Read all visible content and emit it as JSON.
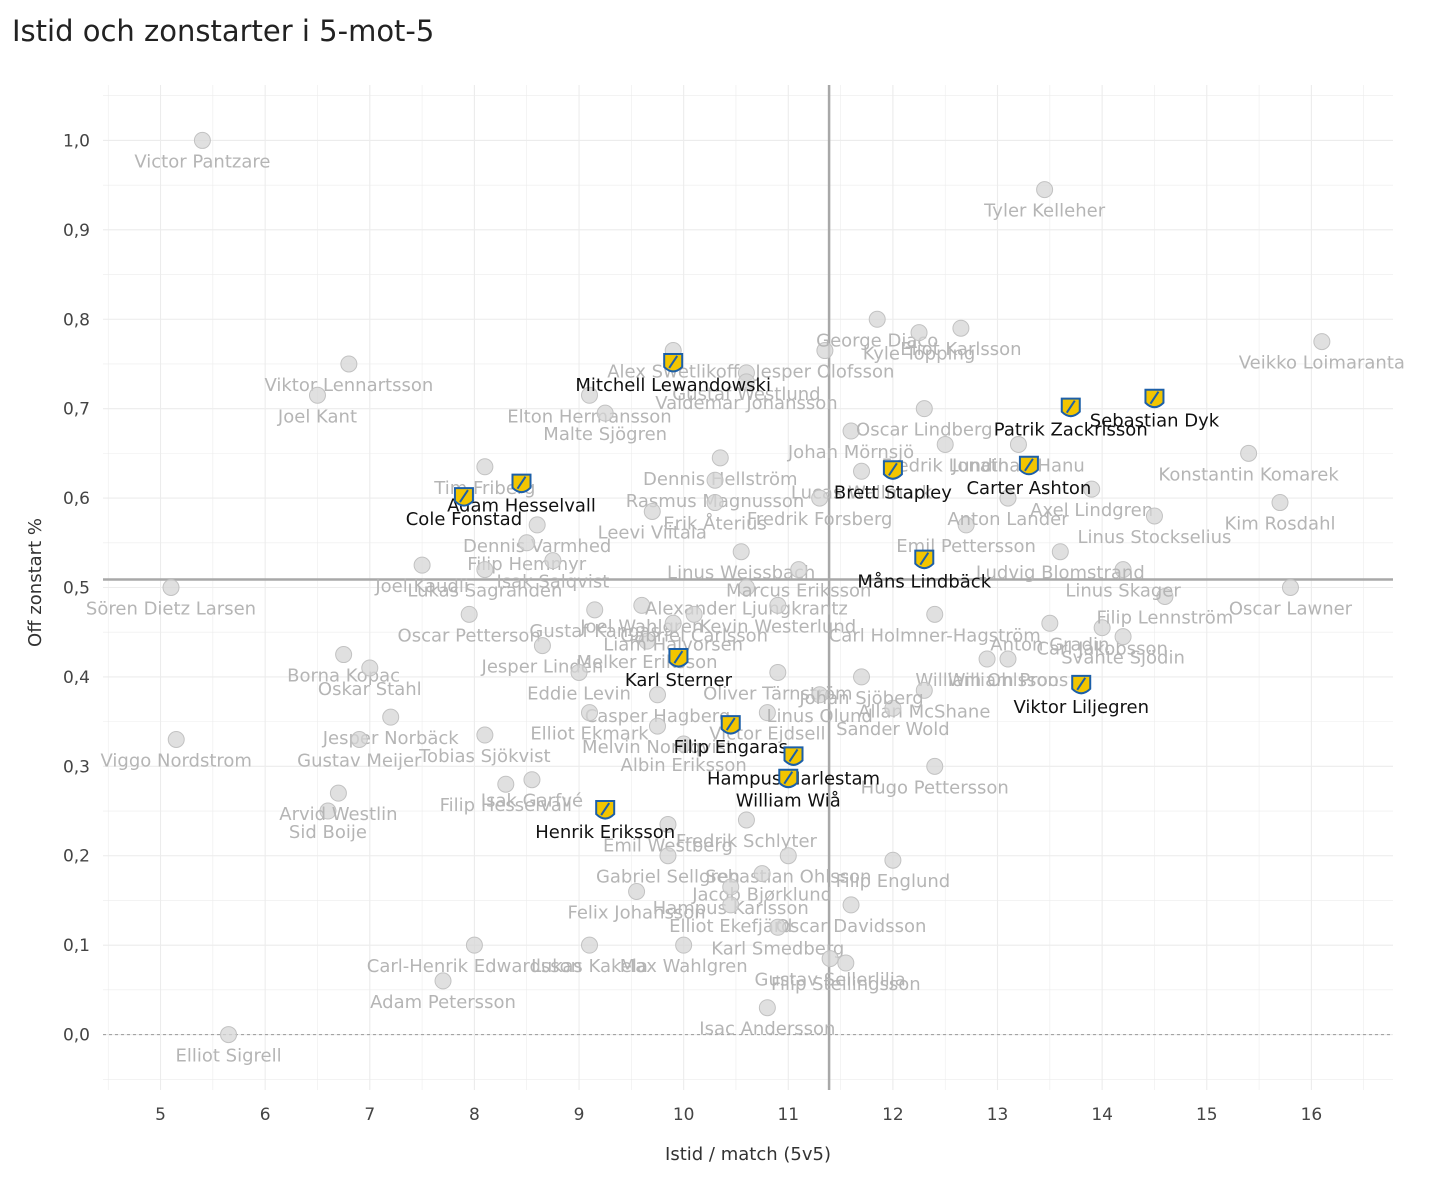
{
  "page": {
    "title": "Istid och zonstarter i 5-mot-5"
  },
  "chart_data": {
    "type": "scatter",
    "title": "Istid och zonstarter i 5-mot-5",
    "xlabel": "Istid / match (5v5)",
    "ylabel": "Off zonstart %",
    "xlim": [
      4.45,
      16.78
    ],
    "ylim": [
      -0.062,
      1.062
    ],
    "xticks": [
      5,
      6,
      7,
      8,
      9,
      10,
      11,
      12,
      13,
      14,
      15,
      16
    ],
    "xtick_labels": [
      "5",
      "6",
      "7",
      "8",
      "9",
      "10",
      "11",
      "12",
      "13",
      "14",
      "15",
      "16"
    ],
    "yticks": [
      0,
      0.1,
      0.2,
      0.3,
      0.4,
      0.5,
      0.6,
      0.7,
      0.8,
      0.9,
      1.0
    ],
    "ytick_labels": [
      "0,0",
      "0,1",
      "0,2",
      "0,3",
      "0,4",
      "0,5",
      "0,6",
      "0,7",
      "0,8",
      "0,9",
      "1,0"
    ],
    "reference_lines": {
      "x_mean": 11.39,
      "y_mean": 0.509,
      "zero_line": 0
    },
    "colors": {
      "highlight_fill": "#f2c500",
      "highlight_stroke": "#1c5fa8",
      "background_marker": "#d6d6d6",
      "background_label": "#b5b5b5",
      "reference_line": "#a8a8a8",
      "grid": "#ececec"
    },
    "highlighted": [
      {
        "name": "Mitchell Lewandowski",
        "x": 9.9,
        "y": 0.75
      },
      {
        "name": "Sebastian Dyk",
        "x": 14.5,
        "y": 0.71
      },
      {
        "name": "Patrik Zackrisson",
        "x": 13.7,
        "y": 0.7
      },
      {
        "name": "Adam Hesselvall",
        "x": 8.45,
        "y": 0.615
      },
      {
        "name": "Cole Fonstad",
        "x": 7.9,
        "y": 0.6
      },
      {
        "name": "Brett Stapley",
        "x": 12.0,
        "y": 0.63
      },
      {
        "name": "Carter Ashton",
        "x": 13.3,
        "y": 0.635
      },
      {
        "name": "Måns Lindbäck",
        "x": 12.3,
        "y": 0.53
      },
      {
        "name": "Karl Sterner",
        "x": 9.95,
        "y": 0.42
      },
      {
        "name": "Viktor Liljegren",
        "x": 13.8,
        "y": 0.39
      },
      {
        "name": "Filip Engaras",
        "x": 10.45,
        "y": 0.345
      },
      {
        "name": "Hampus Harlestam",
        "x": 11.05,
        "y": 0.31
      },
      {
        "name": "William Wiå",
        "x": 11.0,
        "y": 0.285
      },
      {
        "name": "Henrik Eriksson",
        "x": 9.25,
        "y": 0.25
      }
    ],
    "others": [
      {
        "name": "Victor Pantzare",
        "x": 5.4,
        "y": 1.0
      },
      {
        "name": "Tyler Kelleher",
        "x": 13.45,
        "y": 0.945
      },
      {
        "name": "Veikko Loimaranta",
        "x": 16.1,
        "y": 0.775
      },
      {
        "name": "Viktor Lennartsson",
        "x": 6.8,
        "y": 0.75
      },
      {
        "name": "Joel Kant",
        "x": 6.5,
        "y": 0.715
      },
      {
        "name": "Jesper Olofsson",
        "x": 11.35,
        "y": 0.765
      },
      {
        "name": "Eliot Karlsson",
        "x": 12.65,
        "y": 0.79
      },
      {
        "name": "George Diaco",
        "x": 11.85,
        "y": 0.8
      },
      {
        "name": "Kyle Topping",
        "x": 12.25,
        "y": 0.785
      },
      {
        "name": "Alex Swetlikoff",
        "x": 9.9,
        "y": 0.765
      },
      {
        "name": "Gustaf Westlund",
        "x": 10.6,
        "y": 0.74
      },
      {
        "name": "Valdemar Johansson",
        "x": 10.6,
        "y": 0.73
      },
      {
        "name": "Elton Hermansson",
        "x": 9.1,
        "y": 0.715
      },
      {
        "name": "Malte Sjögren",
        "x": 9.25,
        "y": 0.695
      },
      {
        "name": "Johan Mörnsjö",
        "x": 11.6,
        "y": 0.675
      },
      {
        "name": "Fredrik Lundin",
        "x": 12.5,
        "y": 0.66
      },
      {
        "name": "Jonathan Hanu",
        "x": 13.2,
        "y": 0.66
      },
      {
        "name": "Dennis Hellström",
        "x": 10.35,
        "y": 0.645
      },
      {
        "name": "Rasmus Magnusson",
        "x": 10.3,
        "y": 0.62
      },
      {
        "name": "Erik Återius",
        "x": 10.3,
        "y": 0.595
      },
      {
        "name": "Kim Rosdahl",
        "x": 15.7,
        "y": 0.595
      },
      {
        "name": "Konstantin Komarek",
        "x": 15.4,
        "y": 0.65
      },
      {
        "name": "Tim Friberg",
        "x": 8.1,
        "y": 0.635
      },
      {
        "name": "Dennis Varmhed",
        "x": 8.6,
        "y": 0.57
      },
      {
        "name": "Filip Hemmyr",
        "x": 8.5,
        "y": 0.55
      },
      {
        "name": "Leevi Viitala",
        "x": 9.7,
        "y": 0.585
      },
      {
        "name": "Linus Weissbach",
        "x": 10.55,
        "y": 0.54
      },
      {
        "name": "Joel Kaudli",
        "x": 7.5,
        "y": 0.525
      },
      {
        "name": "Lukas Sagranden",
        "x": 8.1,
        "y": 0.52
      },
      {
        "name": "Isak Salqvist",
        "x": 8.75,
        "y": 0.53
      },
      {
        "name": "Sören Dietz Larsen",
        "x": 5.1,
        "y": 0.5
      },
      {
        "name": "Oscar Petterson",
        "x": 7.95,
        "y": 0.47
      },
      {
        "name": "Gustaf Kangas",
        "x": 9.15,
        "y": 0.475
      },
      {
        "name": "Joel Wahlgren",
        "x": 9.6,
        "y": 0.48
      },
      {
        "name": "Jesper Lindén",
        "x": 8.65,
        "y": 0.435
      },
      {
        "name": "Melker Eriksson",
        "x": 9.65,
        "y": 0.44
      },
      {
        "name": "Borna Kopac",
        "x": 6.75,
        "y": 0.425
      },
      {
        "name": "Oskar Stahl",
        "x": 7.0,
        "y": 0.41
      },
      {
        "name": "Eddie Levin",
        "x": 9.0,
        "y": 0.405
      },
      {
        "name": "Oliver Tärnström",
        "x": 10.9,
        "y": 0.405
      },
      {
        "name": "Casper Hagberg",
        "x": 9.75,
        "y": 0.38
      },
      {
        "name": "Melvin Nordqvist",
        "x": 9.75,
        "y": 0.345
      },
      {
        "name": "Albin Eriksson",
        "x": 10.0,
        "y": 0.325
      },
      {
        "name": "Elliot Ekmark",
        "x": 9.1,
        "y": 0.36
      },
      {
        "name": "Viggo Nordstrom",
        "x": 5.15,
        "y": 0.33
      },
      {
        "name": "Jesper Norbäck",
        "x": 7.2,
        "y": 0.355
      },
      {
        "name": "Gustav Meijer",
        "x": 6.9,
        "y": 0.33
      },
      {
        "name": "Tobias Sjökvist",
        "x": 8.1,
        "y": 0.335
      },
      {
        "name": "William Ohlsson",
        "x": 12.9,
        "y": 0.42
      },
      {
        "name": "William Proos",
        "x": 13.1,
        "y": 0.42
      },
      {
        "name": "Allan McShane",
        "x": 12.3,
        "y": 0.385
      },
      {
        "name": "Sander Wold",
        "x": 12.0,
        "y": 0.365
      },
      {
        "name": "Carl Jakobsson",
        "x": 14.0,
        "y": 0.455
      },
      {
        "name": "Svante Sjödin",
        "x": 14.2,
        "y": 0.445
      },
      {
        "name": "Filip Lennström",
        "x": 14.6,
        "y": 0.49
      },
      {
        "name": "Oscar Lawner",
        "x": 15.8,
        "y": 0.5
      },
      {
        "name": "Hugo Pettersson",
        "x": 12.4,
        "y": 0.3
      },
      {
        "name": "Sid Boije",
        "x": 6.6,
        "y": 0.25
      },
      {
        "name": "Arvid Westlin",
        "x": 6.7,
        "y": 0.27
      },
      {
        "name": "Isak Garfvé",
        "x": 8.55,
        "y": 0.285
      },
      {
        "name": "Filip Hesselvall",
        "x": 8.3,
        "y": 0.28
      },
      {
        "name": "Fredrik Schlyter",
        "x": 10.6,
        "y": 0.24
      },
      {
        "name": "Emil Westberg",
        "x": 9.85,
        "y": 0.235
      },
      {
        "name": "Gabriel Sellgren",
        "x": 9.85,
        "y": 0.2
      },
      {
        "name": "Sebastian Ohlsson",
        "x": 11.0,
        "y": 0.2
      },
      {
        "name": "Jacob Bjørklund",
        "x": 10.75,
        "y": 0.18
      },
      {
        "name": "Filip Englund",
        "x": 12.0,
        "y": 0.195
      },
      {
        "name": "Hampus Karlsson",
        "x": 10.45,
        "y": 0.165
      },
      {
        "name": "Elliot Ekefjärd",
        "x": 10.45,
        "y": 0.145
      },
      {
        "name": "Oscar Davidsson",
        "x": 11.6,
        "y": 0.145
      },
      {
        "name": "Felix Johansson",
        "x": 9.55,
        "y": 0.16
      },
      {
        "name": "Karl Smedberg",
        "x": 10.9,
        "y": 0.12
      },
      {
        "name": "Gustav Sellerlilja",
        "x": 11.4,
        "y": 0.085
      },
      {
        "name": "Filip Stellingsson",
        "x": 11.55,
        "y": 0.08
      },
      {
        "name": "Carl-Henrik Edwardsson",
        "x": 8.0,
        "y": 0.1
      },
      {
        "name": "Lukas Kakela",
        "x": 9.1,
        "y": 0.1
      },
      {
        "name": "Max Wahlgren",
        "x": 10.0,
        "y": 0.1
      },
      {
        "name": "Adam Petersson",
        "x": 7.7,
        "y": 0.06
      },
      {
        "name": "Isac Andersson",
        "x": 10.8,
        "y": 0.03
      },
      {
        "name": "Elliot Sigrell",
        "x": 5.65,
        "y": 0.0
      },
      {
        "name": "Alexander Ljungkrantz",
        "x": 10.6,
        "y": 0.5
      },
      {
        "name": "Marcus Eriksson",
        "x": 11.1,
        "y": 0.52
      },
      {
        "name": "Kevin Westerlund",
        "x": 10.9,
        "y": 0.48
      },
      {
        "name": "Carl Holmner-Hagström",
        "x": 12.4,
        "y": 0.47
      },
      {
        "name": "Anton Gradin",
        "x": 13.5,
        "y": 0.46
      },
      {
        "name": "Linus Skager",
        "x": 14.2,
        "y": 0.52
      },
      {
        "name": "Ludvig Blomstrand",
        "x": 13.6,
        "y": 0.54
      },
      {
        "name": "Axel Lindgren",
        "x": 13.9,
        "y": 0.61
      },
      {
        "name": "Linus Stockselius",
        "x": 14.5,
        "y": 0.58
      },
      {
        "name": "Oscar Lindberg",
        "x": 12.3,
        "y": 0.7
      },
      {
        "name": "Lucas Wallmark",
        "x": 11.7,
        "y": 0.63
      },
      {
        "name": "Emil Pettersson",
        "x": 12.7,
        "y": 0.57
      },
      {
        "name": "Anton Lander",
        "x": 13.1,
        "y": 0.6
      },
      {
        "name": "Liam Halvorsen",
        "x": 9.9,
        "y": 0.46
      },
      {
        "name": "Gabriel Carlsson",
        "x": 10.1,
        "y": 0.47
      },
      {
        "name": "Fredrik Forsberg",
        "x": 11.3,
        "y": 0.6
      },
      {
        "name": "Victor Ejdsell",
        "x": 10.8,
        "y": 0.36
      },
      {
        "name": "Linus Olund",
        "x": 11.3,
        "y": 0.38
      },
      {
        "name": "Johan Sjöberg",
        "x": 11.7,
        "y": 0.4
      }
    ]
  }
}
